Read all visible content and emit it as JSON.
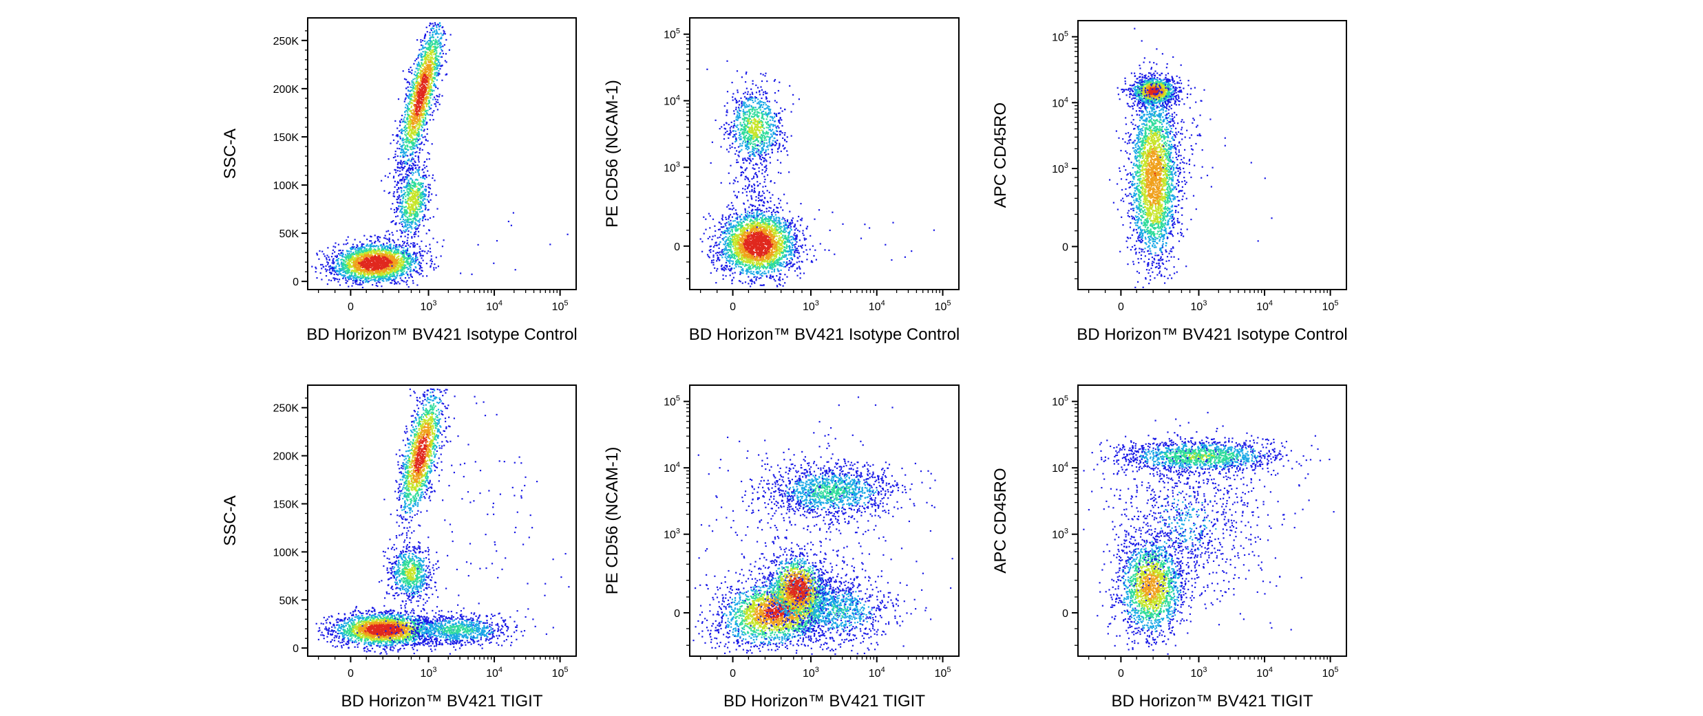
{
  "chart_data": [
    {
      "type": "scatter",
      "title": "",
      "xlabel": "BD Horizon™ BV421 Isotype Control",
      "ylabel": "SSC-A",
      "xscale": "biexponential",
      "yscale": "linear",
      "x_ticks": [
        "0",
        "10^3",
        "10^4",
        "10^5"
      ],
      "y_ticks": [
        "0",
        "50K",
        "100K",
        "150K",
        "200K",
        "250K"
      ],
      "xlim": [
        -800,
        200000
      ],
      "ylim": [
        -2000,
        262144
      ],
      "populations": [
        {
          "x": 100,
          "y": 28000,
          "n": 2300,
          "density": "high"
        },
        {
          "x": 600,
          "y": 180000,
          "n": 1700,
          "density": "high"
        },
        {
          "x": 500,
          "y": 85000,
          "n": 700,
          "density": "medium"
        },
        {
          "x": 5000,
          "y": 30000,
          "n": 12,
          "density": "low"
        }
      ]
    },
    {
      "type": "scatter",
      "title": "",
      "xlabel": "BD Horizon™ BV421 Isotype Control",
      "ylabel": "PE CD56 (NCAM-1)",
      "xscale": "biexponential",
      "yscale": "biexponential",
      "x_ticks": [
        "0",
        "10^3",
        "10^4",
        "10^5"
      ],
      "y_ticks": [
        "0",
        "10^3",
        "10^4",
        "10^5"
      ],
      "xlim": [
        -800,
        200000
      ],
      "ylim": [
        -500,
        200000
      ],
      "populations": [
        {
          "x": 100,
          "y": 10,
          "n": 2800,
          "density": "high"
        },
        {
          "x": 100,
          "y": 3500,
          "n": 900,
          "density": "medium"
        },
        {
          "x": 5000,
          "y": 10,
          "n": 12,
          "density": "low"
        }
      ]
    },
    {
      "type": "scatter",
      "title": "",
      "xlabel": "BD Horizon™ BV421 Isotype Control",
      "ylabel": "APC CD45RO",
      "xscale": "biexponential",
      "yscale": "biexponential",
      "x_ticks": [
        "0",
        "10^3",
        "10^4",
        "10^5"
      ],
      "y_ticks": [
        "0",
        "10^3",
        "10^4",
        "10^5"
      ],
      "xlim": [
        -800,
        200000
      ],
      "ylim": [
        -500,
        200000
      ],
      "populations": [
        {
          "x": 150,
          "y": 15000,
          "n": 1200,
          "density": "high"
        },
        {
          "x": 150,
          "y": 300,
          "n": 2800,
          "density": "high"
        },
        {
          "x": 5000,
          "y": 500,
          "n": 6,
          "density": "low"
        }
      ]
    },
    {
      "type": "scatter",
      "title": "",
      "xlabel": "BD Horizon™ BV421 TIGIT",
      "ylabel": "SSC-A",
      "xscale": "biexponential",
      "yscale": "linear",
      "x_ticks": [
        "0",
        "10^3",
        "10^4",
        "10^5"
      ],
      "y_ticks": [
        "0",
        "50K",
        "100K",
        "150K",
        "200K",
        "250K"
      ],
      "xlim": [
        -800,
        200000
      ],
      "ylim": [
        -2000,
        262144
      ],
      "populations": [
        {
          "x": 200,
          "y": 28000,
          "n": 3200,
          "density": "high"
        },
        {
          "x": 600,
          "y": 190000,
          "n": 1500,
          "density": "high"
        },
        {
          "x": 400,
          "y": 80000,
          "n": 700,
          "density": "medium"
        },
        {
          "x": 10000,
          "y": 120000,
          "n": 80,
          "density": "low"
        }
      ]
    },
    {
      "type": "scatter",
      "title": "",
      "xlabel": "BD Horizon™ BV421 TIGIT",
      "ylabel": "PE CD56 (NCAM-1)",
      "xscale": "biexponential",
      "yscale": "biexponential",
      "x_ticks": [
        "0",
        "10^3",
        "10^4",
        "10^5"
      ],
      "y_ticks": [
        "0",
        "10^3",
        "10^4",
        "10^5"
      ],
      "xlim": [
        -800,
        200000
      ],
      "ylim": [
        -500,
        200000
      ],
      "populations": [
        {
          "x": 600,
          "y": 50,
          "n": 4200,
          "density": "high"
        },
        {
          "x": 1500,
          "y": 4500,
          "n": 1300,
          "density": "medium"
        },
        {
          "x": 800,
          "y": 800,
          "n": 400,
          "density": "low"
        }
      ]
    },
    {
      "type": "scatter",
      "title": "",
      "xlabel": "BD Horizon™ BV421 TIGIT",
      "ylabel": "APC CD45RO",
      "xscale": "biexponential",
      "yscale": "biexponential",
      "x_ticks": [
        "0",
        "10^3",
        "10^4",
        "10^5"
      ],
      "y_ticks": [
        "0",
        "10^3",
        "10^4",
        "10^5"
      ],
      "xlim": [
        -800,
        200000
      ],
      "ylim": [
        -500,
        200000
      ],
      "populations": [
        {
          "x": 200,
          "y": 200,
          "n": 2000,
          "density": "high"
        },
        {
          "x": 1500,
          "y": 14000,
          "n": 1500,
          "density": "medium"
        },
        {
          "x": 1500,
          "y": 1500,
          "n": 1000,
          "density": "low"
        }
      ]
    }
  ],
  "colors": {
    "low": "#1a1ae6",
    "mid_low": "#19a8e6",
    "mid": "#2fdc9b",
    "mid_high": "#c7e52a",
    "high": "#f0a01c",
    "peak": "#e0281e"
  }
}
